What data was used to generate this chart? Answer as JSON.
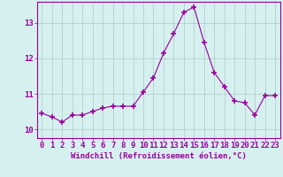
{
  "x": [
    0,
    1,
    2,
    3,
    4,
    5,
    6,
    7,
    8,
    9,
    10,
    11,
    12,
    13,
    14,
    15,
    16,
    17,
    18,
    19,
    20,
    21,
    22,
    23
  ],
  "y": [
    10.45,
    10.35,
    10.2,
    10.4,
    10.4,
    10.5,
    10.6,
    10.65,
    10.65,
    10.65,
    11.05,
    11.45,
    12.15,
    12.7,
    13.3,
    13.45,
    12.45,
    11.6,
    11.2,
    10.8,
    10.75,
    10.4,
    10.95,
    10.95
  ],
  "line_color": "#990099",
  "marker": "+",
  "marker_size": 5,
  "marker_lw": 1.2,
  "bg_color": "#d6f0f0",
  "grid_color": "#b0c8c8",
  "xlabel": "Windchill (Refroidissement éolien,°C)",
  "xlabel_fontsize": 6.5,
  "tick_fontsize": 6.5,
  "ylim": [
    9.75,
    13.6
  ],
  "xlim": [
    -0.5,
    23.5
  ],
  "yticks": [
    10,
    11,
    12,
    13
  ],
  "xticks": [
    0,
    1,
    2,
    3,
    4,
    5,
    6,
    7,
    8,
    9,
    10,
    11,
    12,
    13,
    14,
    15,
    16,
    17,
    18,
    19,
    20,
    21,
    22,
    23
  ]
}
